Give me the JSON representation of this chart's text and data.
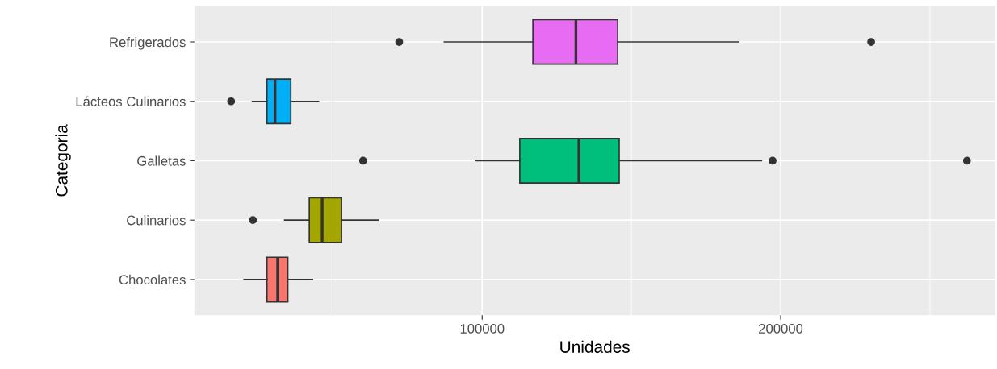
{
  "chart_data": {
    "type": "box",
    "orientation": "horizontal",
    "xlabel": "Unidades",
    "ylabel": "Categoria",
    "categories": [
      "Refrigerados",
      "Lácteos Culinarios",
      "Galletas",
      "Culinarios",
      "Chocolates"
    ],
    "colors": [
      "#e76bf3",
      "#00b0f6",
      "#00bf7d",
      "#a3a500",
      "#f8766d"
    ],
    "boxes": [
      {
        "low": 87300,
        "q1": 117000,
        "median": 131400,
        "q3": 145400,
        "high": 186000,
        "outliers": [
          72200,
          230300
        ]
      },
      {
        "low": 23000,
        "q1": 27900,
        "median": 30600,
        "q3": 35900,
        "high": 45200,
        "outliers": [
          15900
        ]
      },
      {
        "low": 98000,
        "q1": 112600,
        "median": 132400,
        "q3": 145900,
        "high": 193600,
        "outliers": [
          60100,
          197300,
          262400
        ]
      },
      {
        "low": 33800,
        "q1": 42100,
        "median": 46400,
        "q3": 52900,
        "high": 65100,
        "outliers": [
          23200
        ]
      },
      {
        "low": 20200,
        "q1": 27900,
        "median": 31500,
        "q3": 34900,
        "high": 43200
      }
    ],
    "xlim": [
      3600,
      271800
    ],
    "xticks": [
      100000,
      200000
    ],
    "grid": true
  }
}
